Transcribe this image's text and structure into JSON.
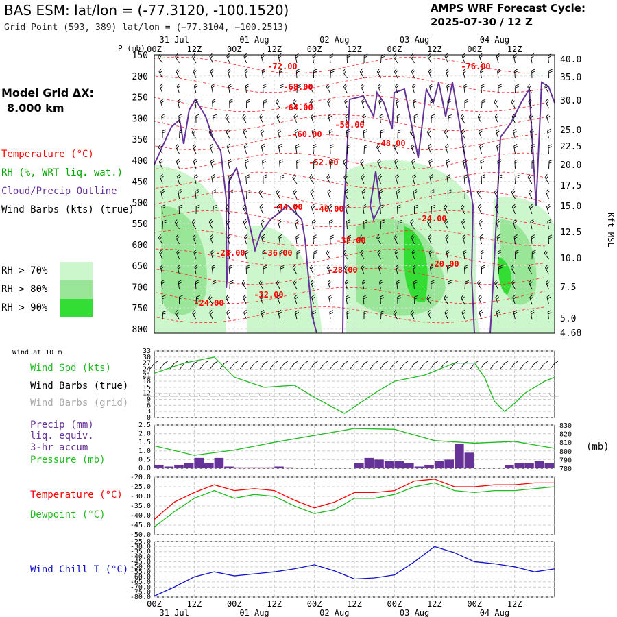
{
  "header": {
    "title": "BAS ESM:  lat/lon = (-77.3120, -100.1520)",
    "subtitle": "Grid Point (593, 389) lat/lon = (−77.3104, −100.2513)",
    "forecast_label": "AMPS WRF Forecast Cycle:",
    "forecast_cycle": "2025-07-30 / 12  Z"
  },
  "model_grid": {
    "label": "Model Grid ΔX:",
    "value": "8.000 km"
  },
  "legend_upper": {
    "temperature": "Temperature (°C)",
    "rh": "RH (%, WRT liq. wat.)",
    "cloud": "Cloud/Precip Outline",
    "wind": "Wind Barbs (kts) (true)",
    "rh_levels": [
      "RH > 70%",
      "RH > 80%",
      "RH > 90%"
    ],
    "rh_colors": [
      "#ccf7cc",
      "#99e699",
      "#33dd33"
    ]
  },
  "legend_wind": {
    "title": "Wind at 10 m",
    "spd": "Wind Spd (kts)",
    "barbs_true": "Wind Barbs (true)",
    "barbs_grid": "Wind Barbs (grid)"
  },
  "legend_precip": {
    "line1": "Precip (mm)",
    "line2": "liq. equiv.",
    "line3": "3-hr accum",
    "line4": "Pressure (mb)",
    "unit": "(mb)"
  },
  "legend_temp": {
    "temp": "Temperature (°C)",
    "dew": "Dewpoint (°C)"
  },
  "legend_wc": {
    "label": "Wind Chill T (°C)"
  },
  "colors": {
    "temperature": "#ff0000",
    "rh": "#00aa00",
    "cloud": "#663399",
    "wind_speed": "#22bb22",
    "precip": "#663399",
    "wind_chill": "#1111cc",
    "grid_barbs": "#aaaaaa"
  },
  "chart_data": [
    {
      "type": "heatmap",
      "panel": "time-height cross section",
      "x_ticks": [
        "00Z",
        "12Z",
        "00Z",
        "12Z",
        "00Z",
        "12Z",
        "00Z",
        "12Z",
        "00Z",
        "12Z"
      ],
      "date_labels": [
        "31 Jul",
        "01 Aug",
        "02 Aug",
        "03 Aug",
        "04 Aug"
      ],
      "ylabel": "P (mb)",
      "y_ticks": [
        150,
        200,
        250,
        300,
        350,
        400,
        450,
        500,
        550,
        600,
        650,
        700,
        750,
        800
      ],
      "right_axis_label": "Kft MSL",
      "right_ticks": [
        "40.0",
        "35.0",
        "30.0",
        "25.0",
        "22.5",
        "20.0",
        "17.5",
        "15.0",
        "12.5",
        "10.0",
        "7.5",
        "5.0",
        "4.68"
      ],
      "temperature_labels": [
        "-72.00",
        "-76.00",
        "-68.00",
        "-64.00",
        "-60.00",
        "-56.00",
        "-48.00",
        "-52.00",
        "-44.00",
        "-40.00",
        "-24.00",
        "-32.00",
        "-28.00",
        "-36.00",
        "-20.00",
        "-32.00",
        "-28.00",
        "-24.00"
      ]
    },
    {
      "type": "line",
      "panel": "10 m wind speed",
      "ylabel": "kts",
      "y_ticks": [
        0,
        3,
        6,
        9,
        12,
        15,
        18,
        21,
        24,
        27,
        30,
        33
      ],
      "ylim": [
        0,
        33
      ],
      "x_hours": [
        0,
        9,
        18,
        24,
        33,
        42,
        48,
        57,
        66,
        72,
        81,
        90,
        96,
        99,
        102,
        105,
        108,
        111,
        114,
        117,
        120
      ],
      "series": [
        {
          "name": "Wind Spd (kts)",
          "values": [
            22,
            27,
            30,
            20,
            15,
            16,
            10,
            2,
            12,
            18,
            21,
            27,
            27,
            20,
            8,
            3,
            7,
            12,
            15,
            18,
            20
          ]
        }
      ]
    },
    {
      "type": "bar",
      "panel": "precip and pressure",
      "y_ticks": [
        0.0,
        0.5,
        1.0,
        1.5,
        2.0,
        2.5
      ],
      "ylim": [
        0,
        2.5
      ],
      "right_ticks": [
        780,
        790,
        800,
        810,
        820,
        830
      ],
      "right_lim": [
        780,
        830
      ],
      "precip_x_hours": [
        0,
        3,
        6,
        9,
        12,
        15,
        18,
        21,
        24,
        27,
        30,
        33,
        36,
        39,
        42,
        45,
        48,
        51,
        54,
        57,
        60,
        63,
        66,
        69,
        72,
        75,
        78,
        81,
        84,
        87,
        90,
        93,
        96,
        99,
        102,
        105,
        108,
        111,
        114,
        117
      ],
      "precip_values": [
        0.2,
        0.1,
        0.2,
        0.3,
        0.6,
        0.3,
        0.6,
        0.1,
        0.05,
        0.05,
        0.05,
        0.05,
        0.1,
        0.05,
        0,
        0,
        0,
        0,
        0,
        0,
        0.3,
        0.6,
        0.5,
        0.4,
        0.4,
        0.3,
        0.1,
        0.2,
        0.4,
        0.5,
        1.4,
        0.9,
        0,
        0,
        0,
        0.2,
        0.3,
        0.3,
        0.4,
        0.3
      ],
      "pressure_x_hours": [
        0,
        12,
        24,
        36,
        48,
        60,
        72,
        84,
        96,
        108,
        120
      ],
      "series": [
        {
          "name": "Pressure (mb)",
          "values": [
            806,
            795,
            801,
            810,
            818,
            826,
            825,
            812,
            809,
            811,
            803
          ]
        }
      ]
    },
    {
      "type": "line",
      "panel": "temperature and dewpoint",
      "y_ticks": [
        -20,
        -25,
        -30,
        -35,
        -40,
        -45,
        -50
      ],
      "ylim": [
        -50,
        -20
      ],
      "x_hours": [
        0,
        6,
        12,
        18,
        24,
        30,
        36,
        42,
        48,
        54,
        60,
        66,
        72,
        78,
        84,
        90,
        96,
        102,
        108,
        114,
        120
      ],
      "series": [
        {
          "name": "Temperature (°C)",
          "values": [
            -42,
            -33,
            -28,
            -24,
            -27,
            -26,
            -27,
            -32,
            -36,
            -33,
            -28,
            -28,
            -27,
            -22,
            -21,
            -25,
            -25,
            -24,
            -24,
            -23,
            -23
          ]
        },
        {
          "name": "Dewpoint (°C)",
          "values": [
            -46,
            -38,
            -31,
            -27,
            -31,
            -29,
            -30,
            -35,
            -39,
            -37,
            -31,
            -31,
            -29,
            -25,
            -23,
            -27,
            -28,
            -27,
            -27,
            -26,
            -25
          ]
        }
      ]
    },
    {
      "type": "line",
      "panel": "wind chill",
      "y_ticks": [
        -25,
        -30,
        -35,
        -40,
        -45,
        -50,
        -55,
        -60,
        -65,
        -70,
        -75,
        -80
      ],
      "ylim": [
        -80,
        -25
      ],
      "x_hours": [
        0,
        6,
        12,
        18,
        24,
        30,
        36,
        42,
        48,
        54,
        60,
        66,
        72,
        78,
        84,
        90,
        96,
        102,
        108,
        114,
        120
      ],
      "series": [
        {
          "name": "Wind Chill T (°C)",
          "values": [
            -79,
            -70,
            -60,
            -55,
            -59,
            -57,
            -55,
            -52,
            -48,
            -54,
            -62,
            -61,
            -58,
            -45,
            -30,
            -36,
            -45,
            -47,
            -50,
            -55,
            -52
          ]
        }
      ]
    }
  ]
}
